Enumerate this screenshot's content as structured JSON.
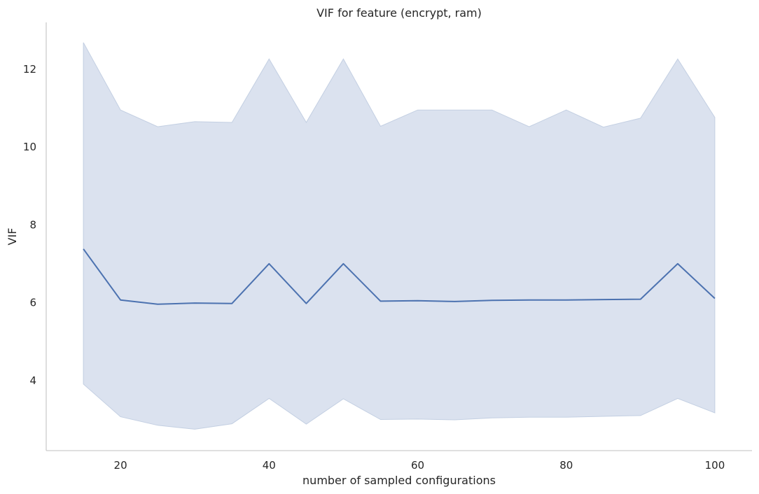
{
  "chart_data": {
    "type": "line",
    "title": "VIF for feature (encrypt, ram)",
    "xlabel": "number of sampled configurations",
    "ylabel": "VIF",
    "xlim": [
      10,
      105
    ],
    "ylim": [
      2.2,
      13.2
    ],
    "xticks": [
      20,
      40,
      60,
      80,
      100
    ],
    "yticks": [
      4,
      6,
      8,
      10,
      12
    ],
    "grid": false,
    "colors": {
      "line": "#4c72b0",
      "band": "#dbe2ef",
      "band_edge": "#c3cfe2",
      "axis": "#cccccc"
    },
    "series": [
      {
        "x": [
          15,
          20,
          25,
          30,
          35,
          40,
          45,
          50,
          55,
          60,
          65,
          70,
          75,
          80,
          85,
          90,
          95,
          100
        ],
        "values": [
          7.38,
          6.07,
          5.96,
          5.99,
          5.98,
          7.0,
          5.98,
          7.0,
          6.04,
          6.05,
          6.03,
          6.06,
          6.07,
          6.07,
          6.08,
          6.09,
          7.0,
          6.11
        ],
        "upper": [
          12.68,
          10.95,
          10.52,
          10.65,
          10.63,
          12.26,
          10.63,
          12.26,
          10.53,
          10.95,
          10.95,
          10.95,
          10.52,
          10.95,
          10.51,
          10.74,
          12.26,
          10.76
        ],
        "lower": [
          3.91,
          3.07,
          2.85,
          2.75,
          2.89,
          3.54,
          2.88,
          3.53,
          3.0,
          3.01,
          2.99,
          3.04,
          3.06,
          3.06,
          3.08,
          3.1,
          3.54,
          3.17
        ]
      }
    ]
  }
}
